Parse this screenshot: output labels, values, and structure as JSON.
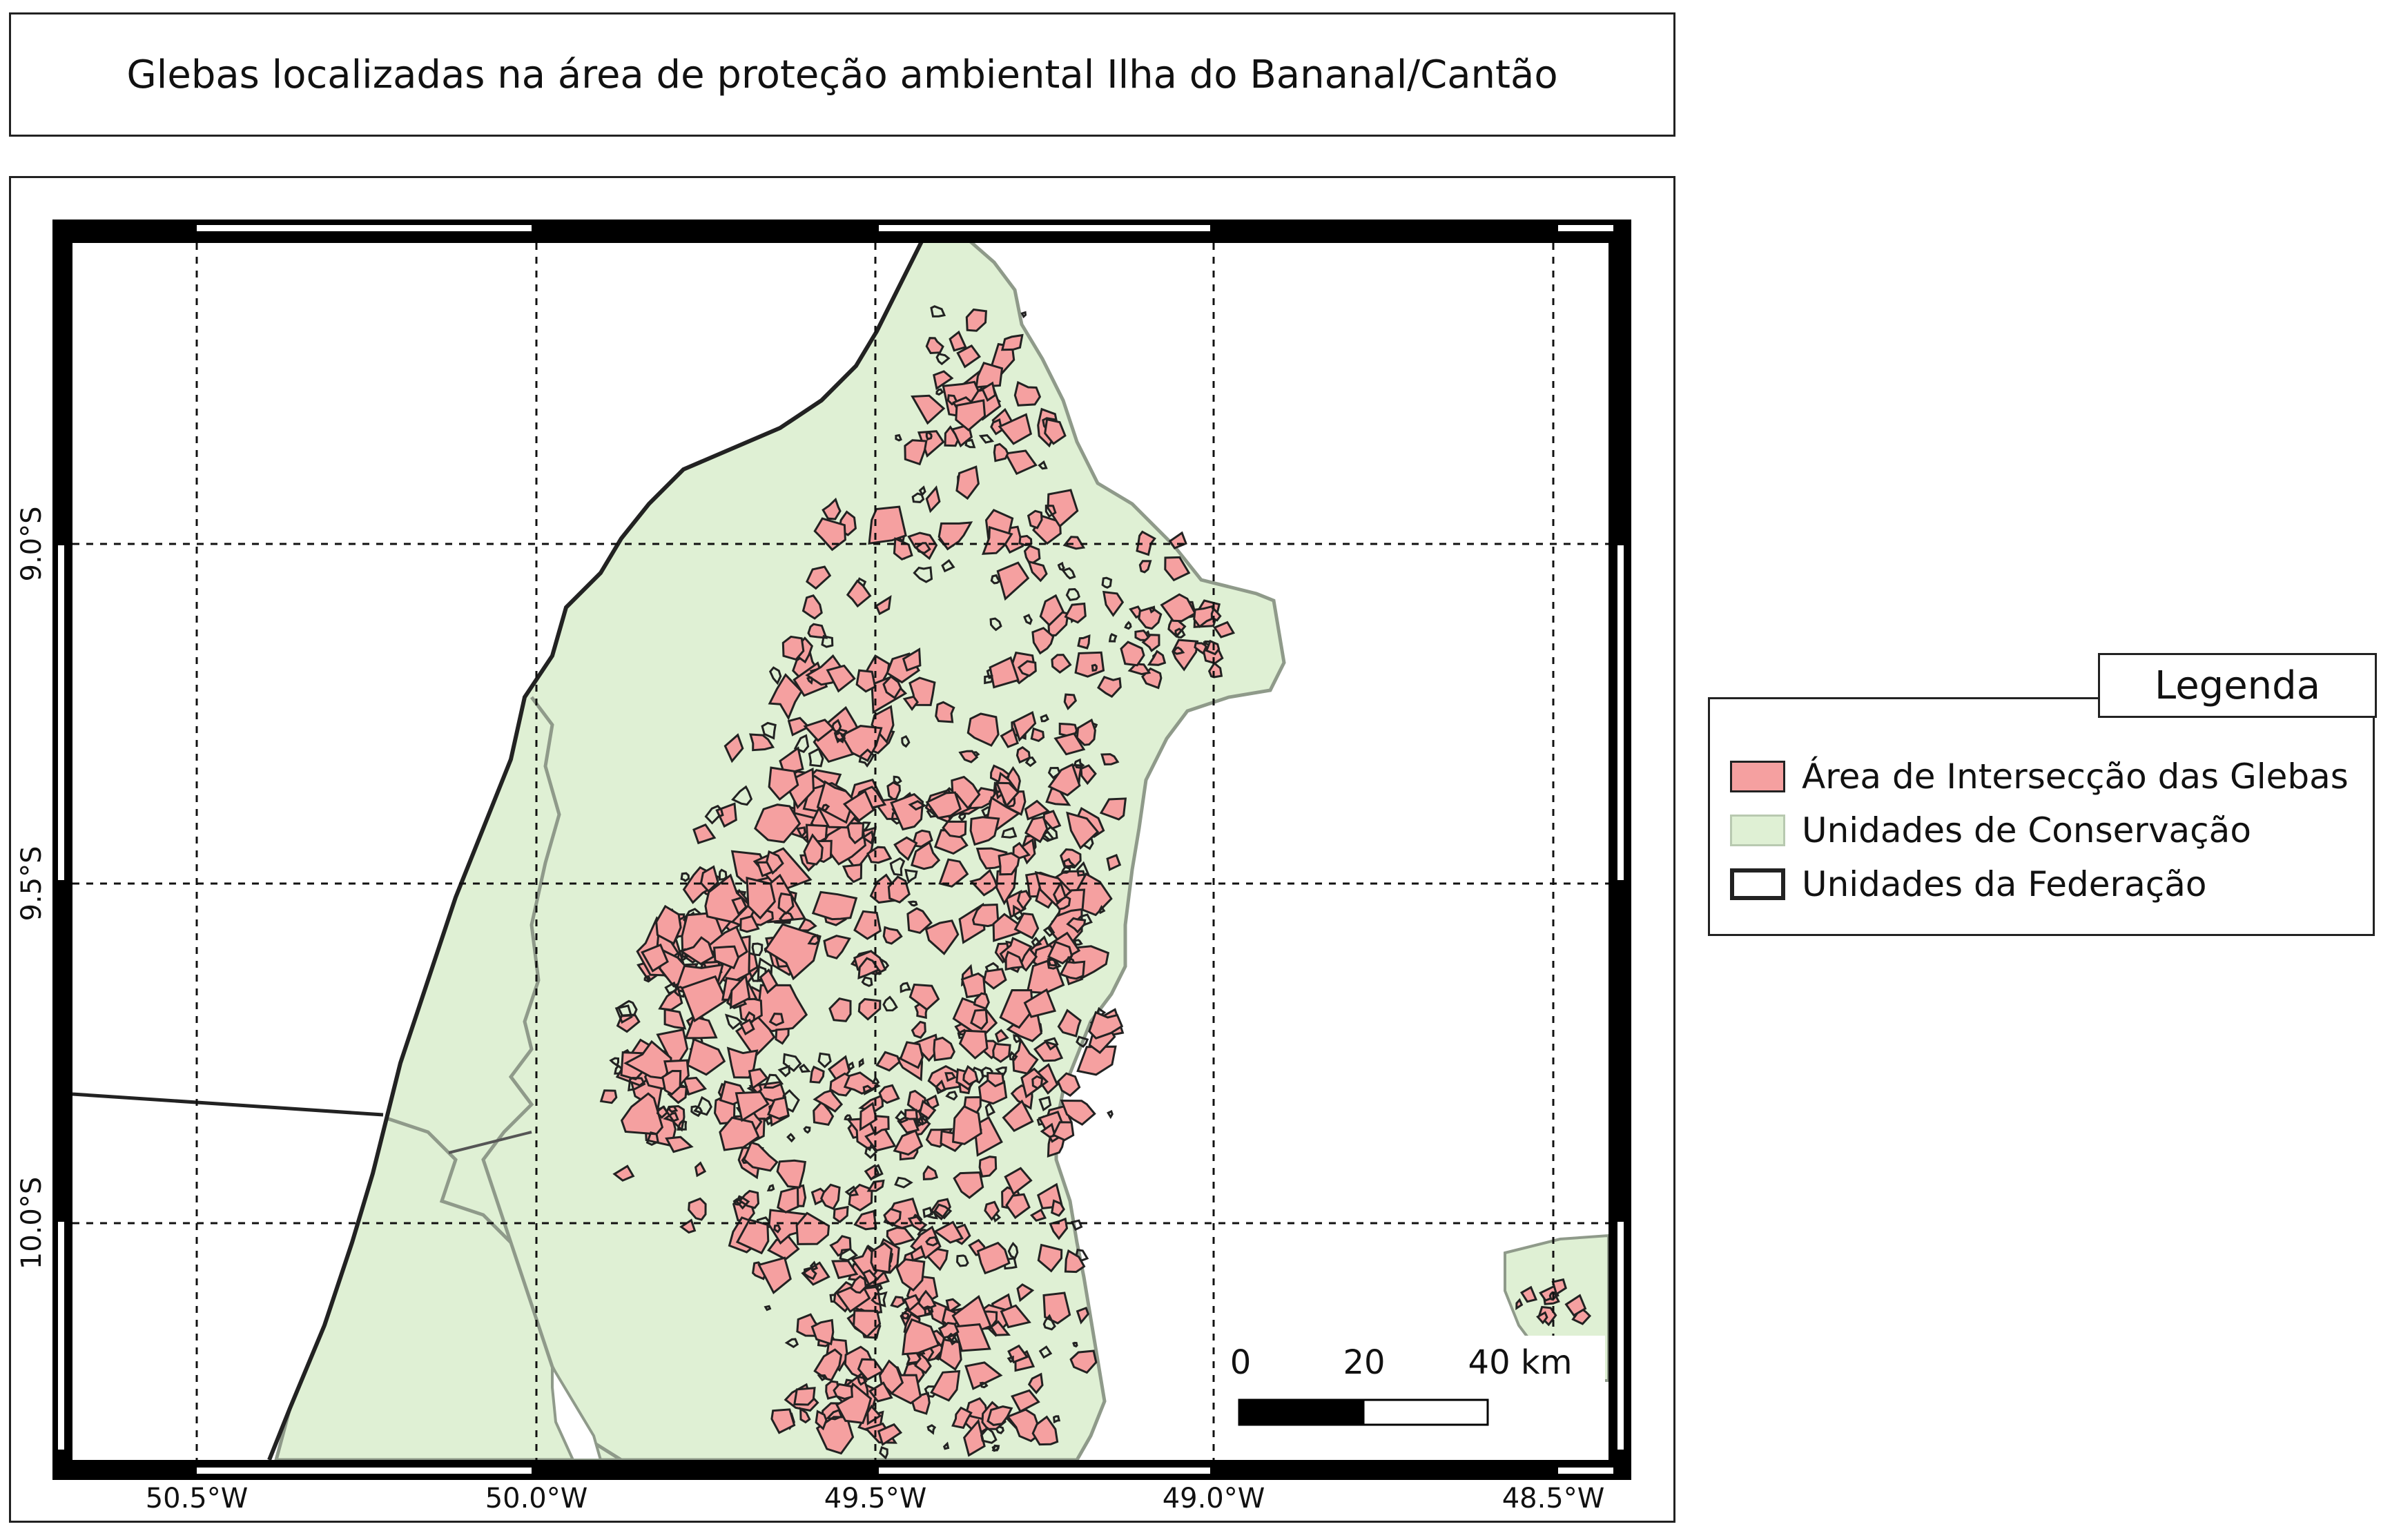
{
  "title": "Glebas localizadas na área de proteção ambiental Ilha do Bananal/Cantão",
  "longitude_labels": [
    "50.5°W",
    "50.0°W",
    "49.5°W",
    "49.0°W",
    "48.5°W"
  ],
  "latitude_labels": [
    "9.0°S",
    "9.5°S",
    "10.0°S"
  ],
  "legend": {
    "title": "Legenda",
    "items": [
      {
        "label": "Área de Intersecção das Glebas",
        "fill": "#f5a0a0",
        "stroke": "#222222"
      },
      {
        "label": "Unidades de Conservação",
        "fill": "#dff0d4",
        "stroke": "#b8c9b0"
      },
      {
        "label": "Unidades da Federação",
        "fill": "#ffffff",
        "stroke": "#222222"
      }
    ]
  },
  "scale_bar": {
    "labels": [
      "0",
      "20",
      "40 km"
    ]
  },
  "colors": {
    "glebas": "#f5a0a0",
    "conservacao": "#dff0d4",
    "conservacao_edge": "#8f9a8a",
    "federacao_border": "#222222"
  }
}
